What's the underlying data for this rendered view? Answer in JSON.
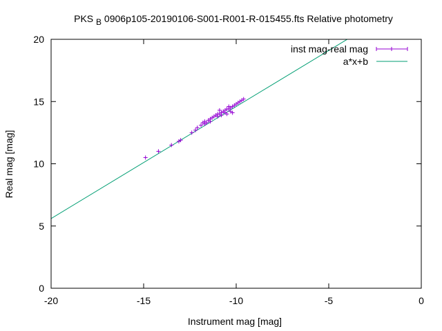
{
  "chart_data": {
    "type": "scatter",
    "title_prefix": "PKS",
    "title_subscript": "B",
    "title_suffix": "0906p105-20190106-S001-R001-R-015455.fts Relative photometry",
    "xlabel": "Instrument mag [mag]",
    "ylabel": "Real mag [mag]",
    "xlim": [
      -20,
      0
    ],
    "ylim": [
      0,
      20
    ],
    "xticks": [
      -20,
      -15,
      -10,
      -5,
      0
    ],
    "yticks": [
      0,
      5,
      10,
      15,
      20
    ],
    "xtick_labels": [
      "-20",
      "-15",
      "-10",
      "-5",
      "0"
    ],
    "ytick_labels": [
      "0",
      "5",
      "10",
      "15",
      "20"
    ],
    "legend_position": "top-right",
    "grid": false,
    "series": [
      {
        "name": "inst mag-real mag",
        "kind": "points-errorbars",
        "color": "#9400d3",
        "points": [
          [
            -14.9,
            10.5
          ],
          [
            -14.2,
            11.0
          ],
          [
            -13.5,
            11.5
          ],
          [
            -13.1,
            11.8
          ],
          [
            -13.0,
            11.9
          ],
          [
            -12.4,
            12.5
          ],
          [
            -12.2,
            12.7
          ],
          [
            -12.1,
            12.9
          ],
          [
            -11.9,
            13.1
          ],
          [
            -11.8,
            13.3
          ],
          [
            -11.7,
            13.4
          ],
          [
            -11.6,
            13.3
          ],
          [
            -11.5,
            13.5
          ],
          [
            -11.4,
            13.6
          ],
          [
            -11.3,
            13.7
          ],
          [
            -11.2,
            13.8
          ],
          [
            -11.1,
            13.9
          ],
          [
            -11.0,
            14.0
          ],
          [
            -10.9,
            14.0
          ],
          [
            -10.8,
            14.1
          ],
          [
            -10.7,
            14.2
          ],
          [
            -10.6,
            14.3
          ],
          [
            -10.5,
            14.4
          ],
          [
            -10.4,
            14.4
          ],
          [
            -10.3,
            14.5
          ],
          [
            -10.2,
            14.6
          ],
          [
            -10.1,
            14.7
          ],
          [
            -10.0,
            14.8
          ],
          [
            -9.9,
            14.9
          ],
          [
            -9.8,
            15.0
          ],
          [
            -9.7,
            15.1
          ],
          [
            -9.6,
            15.2
          ],
          [
            -11.7,
            13.2
          ],
          [
            -11.4,
            13.4
          ],
          [
            -11.0,
            13.8
          ],
          [
            -10.8,
            13.9
          ],
          [
            -10.6,
            14.1
          ],
          [
            -10.4,
            14.6
          ],
          [
            -10.3,
            14.2
          ],
          [
            -10.2,
            14.1
          ],
          [
            -10.5,
            14.0
          ],
          [
            -10.9,
            14.3
          ]
        ]
      },
      {
        "name": "a*x+b",
        "kind": "line",
        "color": "#009e73",
        "slope": 0.9,
        "intercept": 23.6
      }
    ]
  }
}
